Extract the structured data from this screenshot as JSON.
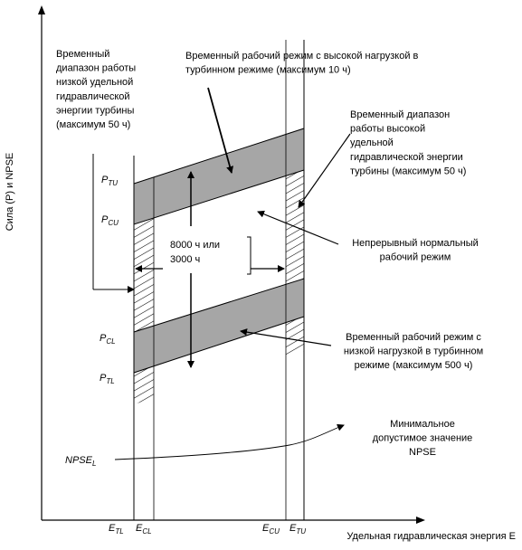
{
  "axes": {
    "y_label": "Сила (P) и NPSE",
    "x_label": "Удельная гидравлическая энергия E"
  },
  "regions": {
    "temp_low_energy": [
      "Временный",
      "диапазон работы",
      "низкой удельной",
      "гидравлической",
      "энергии турбины",
      "(максимум 50 ч)"
    ],
    "temp_high_load": [
      "Временный рабочий режим с высокой нагрузкой в",
      "турбинном режиме (максимум 10 ч)"
    ],
    "temp_high_energy": [
      "Временный диапазон",
      "работы высокой",
      "удельной",
      "гидравлической энергии",
      "турбины (максимум 50 ч)"
    ],
    "continuous_normal": [
      "Непрерывный нормальный",
      "рабочий режим"
    ],
    "temp_low_load": [
      "Временный рабочий режим с",
      "низкой нагрузкой в турбинном",
      "режиме (максимум 500 ч)"
    ],
    "npse_min": [
      "Минимальное",
      "допустимое значение",
      "NPSE"
    ],
    "hours_box": [
      "8000 ч или",
      "3000 ч"
    ]
  },
  "symbols": {
    "p_tu": {
      "main": "P",
      "sub": "TU"
    },
    "p_cu": {
      "main": "P",
      "sub": "CU"
    },
    "p_cl": {
      "main": "P",
      "sub": "CL"
    },
    "p_tl": {
      "main": "P",
      "sub": "TL"
    },
    "npse_l": {
      "main": "NPSE",
      "sub": "L"
    },
    "e_tl": {
      "main": "E",
      "sub": "TL"
    },
    "e_cl": {
      "main": "E",
      "sub": "CL"
    },
    "e_cu": {
      "main": "E",
      "sub": "CU"
    },
    "e_tu": {
      "main": "E",
      "sub": "TU"
    }
  },
  "colors": {
    "band_fill": "#a6a6a6",
    "line": "#000000"
  }
}
